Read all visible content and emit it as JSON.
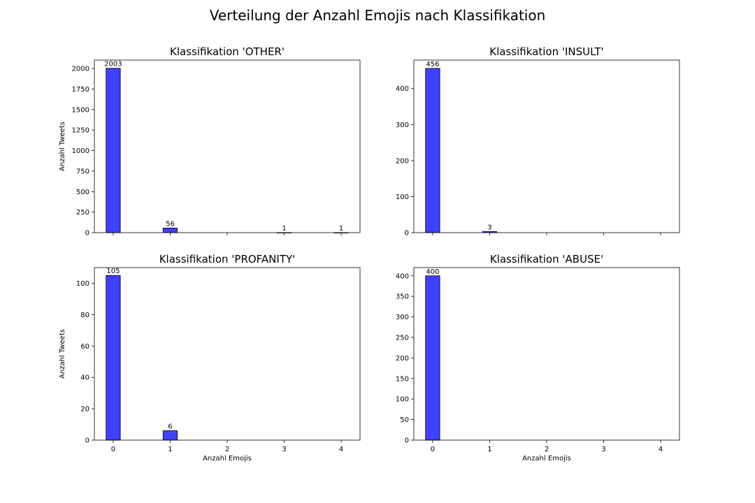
{
  "figure": {
    "suptitle": "Verteilung der Anzahl Emojis nach Klassifikation"
  },
  "colors": {
    "bar_fill": "#4040ff",
    "bar_edge": "#000000",
    "axis": "#000000",
    "background": "#ffffff"
  },
  "chart_data": [
    {
      "type": "bar",
      "title": "Klassifikation 'OTHER'",
      "xlabel": "",
      "ylabel": "Anzahl Tweets",
      "x": [
        0,
        1,
        3,
        4
      ],
      "values": [
        2003,
        56,
        1,
        1
      ],
      "data_labels": [
        "2003",
        "56",
        "1",
        "1"
      ],
      "xlim": [
        -0.33,
        4.33
      ],
      "ylim": [
        0,
        2103
      ],
      "xticks": [
        0,
        1,
        2,
        3,
        4
      ],
      "xtick_labels_visible": false,
      "yticks": [
        0,
        250,
        500,
        750,
        1000,
        1250,
        1500,
        1750,
        2000
      ],
      "ytick_labels": [
        "0",
        "250",
        "500",
        "750",
        "1000",
        "1250",
        "1500",
        "1750",
        "2000"
      ],
      "bar_width": 0.25,
      "grid": false,
      "legend": "none"
    },
    {
      "type": "bar",
      "title": "Klassifikation 'INSULT'",
      "xlabel": "",
      "ylabel": "",
      "x": [
        0,
        1
      ],
      "values": [
        456,
        3
      ],
      "data_labels": [
        "456",
        "3"
      ],
      "xlim": [
        -0.33,
        4.33
      ],
      "ylim": [
        0,
        479
      ],
      "xticks": [
        0,
        1,
        2,
        3,
        4
      ],
      "xtick_labels_visible": false,
      "yticks": [
        0,
        100,
        200,
        300,
        400
      ],
      "ytick_labels": [
        "0",
        "100",
        "200",
        "300",
        "400"
      ],
      "bar_width": 0.25,
      "grid": false,
      "legend": "none"
    },
    {
      "type": "bar",
      "title": "Klassifikation 'PROFANITY'",
      "xlabel": "Anzahl Emojis",
      "ylabel": "Anzahl Tweets",
      "x": [
        0,
        1
      ],
      "values": [
        105,
        6
      ],
      "data_labels": [
        "105",
        "6"
      ],
      "xlim": [
        -0.33,
        4.33
      ],
      "ylim": [
        0,
        110
      ],
      "xticks": [
        0,
        1,
        2,
        3,
        4
      ],
      "xtick_labels_visible": true,
      "xtick_labels": [
        "0",
        "1",
        "2",
        "3",
        "4"
      ],
      "yticks": [
        0,
        20,
        40,
        60,
        80,
        100
      ],
      "ytick_labels": [
        "0",
        "20",
        "40",
        "60",
        "80",
        "100"
      ],
      "bar_width": 0.25,
      "grid": false,
      "legend": "none"
    },
    {
      "type": "bar",
      "title": "Klassifikation 'ABUSE'",
      "xlabel": "Anzahl Emojis",
      "ylabel": "",
      "x": [
        0
      ],
      "values": [
        400
      ],
      "data_labels": [
        "400"
      ],
      "xlim": [
        -0.33,
        4.33
      ],
      "ylim": [
        0,
        420
      ],
      "xticks": [
        0,
        1,
        2,
        3,
        4
      ],
      "xtick_labels_visible": true,
      "xtick_labels": [
        "0",
        "1",
        "2",
        "3",
        "4"
      ],
      "yticks": [
        0,
        50,
        100,
        150,
        200,
        250,
        300,
        350,
        400
      ],
      "ytick_labels": [
        "0",
        "50",
        "100",
        "150",
        "200",
        "250",
        "300",
        "350",
        "400"
      ],
      "bar_width": 0.25,
      "grid": false,
      "legend": "none"
    }
  ]
}
